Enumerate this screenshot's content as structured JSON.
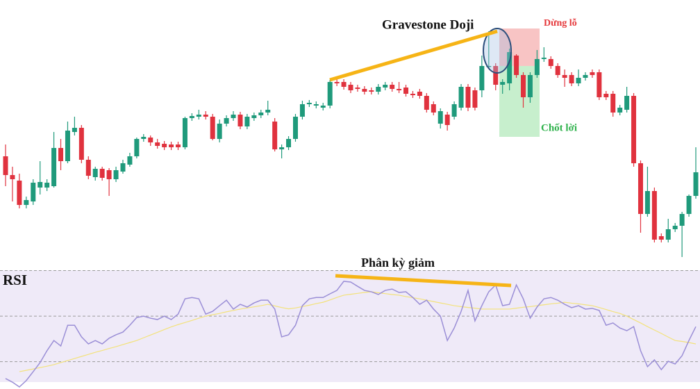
{
  "chart_data": [
    {
      "type": "candlestick",
      "annotations": [
        "Gravestone Doji",
        "Dừng lỗ",
        "Chốt lời"
      ],
      "up_color": "#1f9a7b",
      "down_color": "#e0323e",
      "ylim": [
        20,
        400
      ],
      "open": [
        175,
        148,
        140,
        105,
        110,
        130,
        130,
        132,
        187,
        168,
        210,
        216,
        170,
        145,
        157,
        155,
        142,
        153,
        163,
        175,
        200,
        202,
        195,
        193,
        192,
        192,
        188,
        230,
        232,
        235,
        232,
        200,
        222,
        230,
        235,
        218,
        230,
        234,
        238,
        225,
        185,
        188,
        200,
        232,
        250,
        248,
        245,
        248,
        282,
        282,
        278,
        274,
        272,
        270,
        268,
        274,
        278,
        272,
        274,
        265,
        268,
        262,
        250,
        222,
        235,
        232,
        245,
        275,
        270,
        270,
        304,
        305,
        278,
        280,
        320,
        292,
        260,
        292,
        315,
        315,
        305,
        292,
        292,
        280,
        288,
        296,
        296,
        265,
        265,
        238,
        242,
        262,
        165,
        92,
        125,
        60,
        55,
        70,
        75,
        92,
        118
      ],
      "close": [
        148,
        142,
        105,
        112,
        137,
        138,
        137,
        187,
        168,
        212,
        216,
        170,
        147,
        157,
        144,
        142,
        155,
        165,
        175,
        200,
        203,
        195,
        190,
        188,
        188,
        188,
        230,
        233,
        235,
        232,
        200,
        222,
        230,
        235,
        218,
        232,
        234,
        238,
        242,
        185,
        188,
        200,
        232,
        250,
        252,
        250,
        248,
        282,
        280,
        275,
        270,
        272,
        268,
        268,
        275,
        278,
        272,
        270,
        265,
        263,
        262,
        242,
        238,
        240,
        220,
        250,
        275,
        245,
        245,
        305,
        305,
        278,
        282,
        325,
        292,
        260,
        292,
        315,
        317,
        305,
        292,
        288,
        280,
        288,
        292,
        292,
        260,
        260,
        238,
        245,
        262,
        165,
        92,
        125,
        55,
        55,
        70,
        75,
        92,
        118,
        152
      ],
      "high": [
        192,
        160,
        150,
        117,
        142,
        168,
        142,
        210,
        200,
        225,
        232,
        220,
        175,
        160,
        160,
        158,
        160,
        170,
        180,
        202,
        207,
        205,
        200,
        197,
        196,
        196,
        232,
        237,
        242,
        240,
        236,
        228,
        234,
        240,
        239,
        236,
        238,
        242,
        255,
        230,
        192,
        204,
        236,
        255,
        256,
        254,
        252,
        285,
        286,
        286,
        282,
        278,
        276,
        274,
        279,
        282,
        282,
        282,
        278,
        269,
        272,
        266,
        254,
        244,
        239,
        254,
        279,
        279,
        274,
        320,
        355,
        309,
        286,
        330,
        322,
        296,
        296,
        328,
        332,
        319,
        309,
        300,
        296,
        300,
        296,
        300,
        300,
        269,
        269,
        249,
        275,
        266,
        169,
        160,
        130,
        64,
        85,
        79,
        95,
        120,
        188
      ],
      "low": [
        132,
        110,
        100,
        100,
        105,
        120,
        125,
        130,
        155,
        165,
        205,
        165,
        142,
        140,
        140,
        118,
        138,
        150,
        160,
        172,
        196,
        190,
        186,
        184,
        184,
        184,
        185,
        226,
        228,
        228,
        198,
        195,
        218,
        226,
        214,
        214,
        226,
        230,
        234,
        182,
        172,
        184,
        196,
        228,
        246,
        244,
        241,
        244,
        276,
        271,
        266,
        268,
        264,
        264,
        264,
        270,
        268,
        266,
        261,
        259,
        258,
        238,
        234,
        215,
        212,
        228,
        241,
        240,
        241,
        260,
        302,
        270,
        265,
        270,
        288,
        245,
        252,
        288,
        311,
        301,
        288,
        275,
        276,
        276,
        284,
        288,
        256,
        256,
        232,
        234,
        238,
        160,
        65,
        88,
        51,
        51,
        51,
        66,
        30,
        88,
        114
      ]
    },
    {
      "type": "line",
      "title": "RSI",
      "annotations": [
        "Phân kỳ giảm"
      ],
      "ylim": [
        18,
        72
      ],
      "yticks": [
        30,
        50,
        70
      ],
      "grid": true,
      "series": [
        {
          "color": "#9a8ed6",
          "values": [
            22.6,
            21,
            18.9,
            21.7,
            25.6,
            29.6,
            34.8,
            39.3,
            36.9,
            46,
            46,
            40.9,
            37.8,
            39.3,
            37.8,
            40.3,
            41.8,
            43,
            46,
            49.4,
            50,
            49.1,
            48.5,
            50,
            48.5,
            50.9,
            57.6,
            58.2,
            57.6,
            50.9,
            52.1,
            54.6,
            57,
            53.1,
            55.2,
            54,
            55.8,
            57,
            57,
            53.1,
            40.9,
            41.8,
            46,
            54.6,
            57.6,
            58.2,
            58.2,
            59.8,
            61.3,
            65.3,
            65,
            63.1,
            61.3,
            60.7,
            59.5,
            61.3,
            61.9,
            60.4,
            60.7,
            58.2,
            55.2,
            57,
            53.1,
            50,
            39.3,
            44.8,
            52.1,
            61.3,
            47.9,
            54.6,
            60.7,
            63.7,
            54.6,
            55.2,
            63.7,
            57.6,
            49.1,
            54,
            57.6,
            58.2,
            57,
            55.2,
            53.7,
            54.6,
            53.1,
            53.4,
            52.5,
            46,
            47,
            44.8,
            43.6,
            45.4,
            34.8,
            27.8,
            30.8,
            26.5,
            30.2,
            29,
            32.6,
            39.3,
            45.4
          ]
        },
        {
          "color": "#f3e27a",
          "values": [
            null,
            null,
            25.6,
            26.2,
            26.8,
            27.4,
            28,
            28.7,
            29.6,
            30.5,
            31.4,
            32.3,
            33.2,
            34.1,
            34.9,
            35.8,
            36.6,
            37.5,
            38.4,
            39.3,
            40.5,
            41.7,
            42.9,
            44.1,
            45.3,
            46.3,
            47.2,
            48.1,
            49.1,
            50,
            50.6,
            51.2,
            51.9,
            52.5,
            53.1,
            53.6,
            54.1,
            54.6,
            55.2,
            54.5,
            53.8,
            53.2,
            53.6,
            54.2,
            54.8,
            55.5,
            56.1,
            57.1,
            58.2,
            59.2,
            59.6,
            60,
            60.4,
            60.7,
            60.3,
            59.9,
            59.5,
            59.2,
            58.6,
            58.1,
            57.6,
            57,
            56.4,
            55.8,
            55.2,
            54.6,
            54.2,
            53.8,
            53.5,
            53.1,
            53.1,
            53.1,
            53.1,
            53.1,
            53.5,
            53.9,
            54.2,
            54.6,
            55,
            55.4,
            55.7,
            56.1,
            55.7,
            55.4,
            55,
            54.6,
            53.8,
            52.9,
            52,
            51.2,
            50,
            48.5,
            47,
            45.4,
            43.9,
            42.4,
            40.8,
            39.3,
            38.9,
            38.4,
            37.8
          ]
        }
      ]
    }
  ]
}
